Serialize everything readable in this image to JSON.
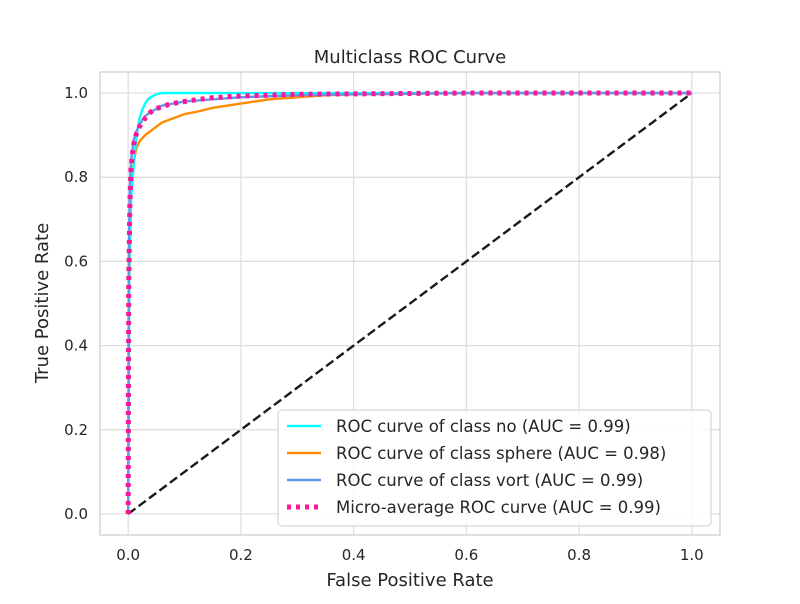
{
  "chart_data": {
    "type": "line",
    "title": "Multiclass ROC Curve",
    "xlabel": "False Positive Rate",
    "ylabel": "True Positive Rate",
    "xlim": [
      -0.05,
      1.05
    ],
    "ylim": [
      -0.05,
      1.05
    ],
    "xticks": [
      0.0,
      0.2,
      0.4,
      0.6,
      0.8,
      1.0
    ],
    "xtick_labels": [
      "0.0",
      "0.2",
      "0.4",
      "0.6",
      "0.8",
      "1.0"
    ],
    "yticks": [
      0.0,
      0.2,
      0.4,
      0.6,
      0.8,
      1.0
    ],
    "ytick_labels": [
      "0.0",
      "0.2",
      "0.4",
      "0.6",
      "0.8",
      "1.0"
    ],
    "grid": true,
    "legend_position": "lower-right",
    "series": [
      {
        "name": "ROC curve of class no (AUC = 0.99)",
        "color": "#00FFFF",
        "style": "solid",
        "x": [
          0.0,
          0.002,
          0.005,
          0.008,
          0.01,
          0.012,
          0.015,
          0.02,
          0.025,
          0.03,
          0.035,
          0.04,
          0.05,
          0.06,
          0.08,
          0.1,
          0.2,
          0.4,
          0.7,
          1.0
        ],
        "y": [
          0.0,
          0.6,
          0.74,
          0.8,
          0.83,
          0.86,
          0.9,
          0.94,
          0.96,
          0.975,
          0.985,
          0.99,
          0.997,
          1.0,
          1.0,
          1.0,
          1.0,
          1.0,
          1.0,
          1.0
        ]
      },
      {
        "name": "ROC curve of class sphere (AUC = 0.98)",
        "color": "#FF8C00",
        "style": "solid",
        "x": [
          0.0,
          0.002,
          0.005,
          0.01,
          0.015,
          0.02,
          0.03,
          0.04,
          0.05,
          0.06,
          0.08,
          0.1,
          0.12,
          0.15,
          0.2,
          0.25,
          0.3,
          0.35,
          0.4,
          0.47,
          0.6,
          0.8,
          1.0
        ],
        "y": [
          0.0,
          0.55,
          0.75,
          0.84,
          0.87,
          0.885,
          0.9,
          0.91,
          0.92,
          0.93,
          0.94,
          0.95,
          0.955,
          0.965,
          0.975,
          0.985,
          0.99,
          0.995,
          0.997,
          0.998,
          1.0,
          1.0,
          1.0
        ]
      },
      {
        "name": "ROC curve of class vort (AUC = 0.99)",
        "color": "#6495ED",
        "style": "solid",
        "x": [
          0.0,
          0.001,
          0.003,
          0.005,
          0.008,
          0.01,
          0.015,
          0.02,
          0.03,
          0.04,
          0.06,
          0.08,
          0.1,
          0.15,
          0.2,
          0.3,
          0.4,
          0.6,
          0.8,
          1.0
        ],
        "y": [
          0.0,
          0.6,
          0.78,
          0.84,
          0.87,
          0.89,
          0.91,
          0.925,
          0.945,
          0.955,
          0.97,
          0.975,
          0.98,
          0.985,
          0.99,
          0.995,
          0.997,
          1.0,
          1.0,
          1.0
        ]
      },
      {
        "name": "Micro-average ROC curve (AUC = 0.99)",
        "color": "#FF1493",
        "style": "dotted",
        "x": [
          0.0,
          0.001,
          0.003,
          0.005,
          0.008,
          0.01,
          0.015,
          0.02,
          0.03,
          0.04,
          0.05,
          0.07,
          0.09,
          0.12,
          0.15,
          0.2,
          0.25,
          0.3,
          0.4,
          0.5,
          0.6,
          0.8,
          1.0
        ],
        "y": [
          0.0,
          0.55,
          0.74,
          0.82,
          0.86,
          0.88,
          0.905,
          0.92,
          0.94,
          0.955,
          0.963,
          0.972,
          0.978,
          0.984,
          0.989,
          0.993,
          0.995,
          0.997,
          0.998,
          0.999,
          1.0,
          1.0,
          1.0
        ]
      },
      {
        "name": "",
        "color": "#1a1a1a",
        "style": "dashed",
        "x": [
          0.0,
          1.0
        ],
        "y": [
          0.0,
          1.0
        ]
      }
    ]
  }
}
